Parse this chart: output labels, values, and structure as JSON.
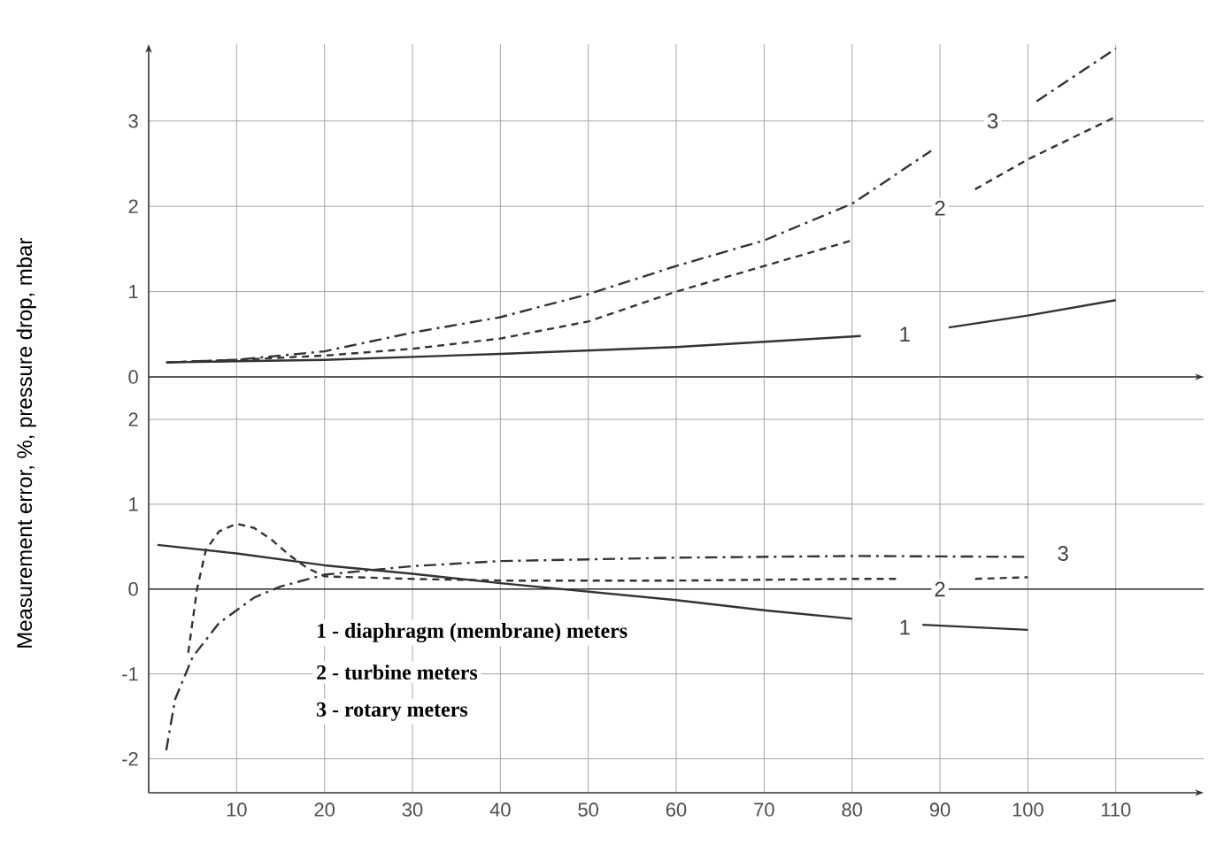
{
  "chart_data": [
    {
      "type": "line",
      "xlim": [
        0,
        120
      ],
      "ylim": [
        0,
        3.9
      ],
      "xticks": [
        10,
        20,
        30,
        40,
        50,
        60,
        70,
        80,
        90,
        100,
        110
      ],
      "yticks": [
        0,
        1,
        2,
        3
      ],
      "tick_labels": "y",
      "grid": true,
      "series": [
        {
          "color": "#333333",
          "line_style": "solid",
          "x": [
            2,
            20,
            40,
            60,
            81,
            86,
            91,
            100,
            110
          ],
          "values": [
            0.17,
            0.2,
            0.27,
            0.35,
            0.48,
            null,
            0.58,
            0.72,
            0.9
          ]
        },
        {
          "color": "#333333",
          "line_style": "dashed",
          "x": [
            2,
            10,
            20,
            30,
            40,
            50,
            60,
            70,
            80,
            84,
            90,
            94,
            100,
            110
          ],
          "values": [
            0.17,
            0.2,
            0.25,
            0.33,
            0.45,
            0.65,
            1.0,
            1.3,
            1.6,
            null,
            null,
            2.2,
            2.55,
            3.05
          ]
        },
        {
          "color": "#333333",
          "line_style": "dashdot",
          "x": [
            2,
            10,
            20,
            30,
            40,
            50,
            60,
            70,
            80,
            89,
            95,
            101,
            110
          ],
          "values": [
            0.17,
            0.2,
            0.3,
            0.52,
            0.7,
            0.97,
            1.3,
            1.6,
            2.03,
            2.65,
            null,
            3.23,
            3.85
          ]
        }
      ],
      "annotations": [
        "1",
        "2",
        "3"
      ]
    },
    {
      "type": "line",
      "xlim": [
        0,
        120
      ],
      "ylim": [
        -2.4,
        2.5
      ],
      "xticks": [
        10,
        20,
        30,
        40,
        50,
        60,
        70,
        80,
        90,
        100,
        110
      ],
      "yticks": [
        -2,
        -1,
        0,
        1,
        2
      ],
      "grid": true,
      "ylabel": "Measurement error, %, pressure drop, mbar",
      "ref_lines": [
        {
          "axis": "y",
          "value": 0
        }
      ],
      "series": [
        {
          "color": "#333333",
          "line_style": "solid",
          "x": [
            1,
            10,
            20,
            30,
            40,
            50,
            60,
            70,
            80,
            84,
            88,
            100
          ],
          "values": [
            0.52,
            0.42,
            0.28,
            0.18,
            0.07,
            -0.03,
            -0.13,
            -0.25,
            -0.35,
            null,
            -0.42,
            -0.48
          ]
        },
        {
          "color": "#333333",
          "line_style": "dashed",
          "x": [
            4.5,
            5.5,
            6.5,
            8,
            10,
            12,
            14,
            16,
            18,
            20,
            30,
            40,
            60,
            80,
            85,
            90,
            94,
            100
          ],
          "values": [
            -0.75,
            0.0,
            0.46,
            0.68,
            0.77,
            0.72,
            0.58,
            0.4,
            0.25,
            0.15,
            0.12,
            0.1,
            0.1,
            0.12,
            0.12,
            null,
            0.12,
            0.14
          ]
        },
        {
          "color": "#333333",
          "line_style": "dashdot",
          "x": [
            2,
            3,
            5,
            8,
            12,
            15,
            20,
            30,
            40,
            60,
            80,
            100
          ],
          "values": [
            -1.9,
            -1.3,
            -0.8,
            -0.4,
            -0.1,
            0.03,
            0.17,
            0.27,
            0.33,
            0.37,
            0.39,
            0.38
          ]
        }
      ],
      "annotations": [
        "1 - diaphragm (membrane) meters",
        "2 - turbine meters",
        "3 - rotary meters",
        "1",
        "2",
        "3"
      ]
    }
  ]
}
